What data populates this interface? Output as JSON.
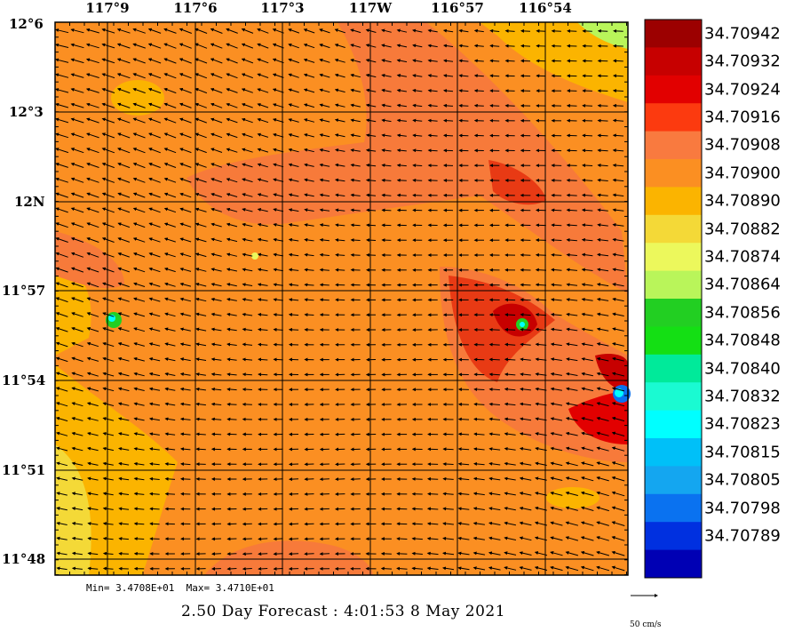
{
  "map": {
    "x_labels": [
      "117°9",
      "117°6",
      "117°3",
      "117W",
      "116°57",
      "116°54"
    ],
    "y_labels": [
      "12°6",
      "12°3",
      "12N",
      "11°57",
      "11°54",
      "11°51",
      "11°48"
    ],
    "stats": {
      "min": "Min= 3.4708E+01",
      "max": "Max= 3.4710E+01"
    },
    "forecast": "2.50 Day Forecast :  4:01:53    8 May 2021",
    "scale_label": "50 cm/s",
    "dominant_color": "#fb8f22",
    "highlight_colors": {
      "warm": "#f77a3a",
      "hot": "#e83a14",
      "cool_spot": "#2dbf4f"
    }
  },
  "colorbar": {
    "levels": [
      {
        "value": "34.70942",
        "color": "#9c0000"
      },
      {
        "value": "34.70932",
        "color": "#c70000"
      },
      {
        "value": "34.70924",
        "color": "#e20000"
      },
      {
        "value": "34.70916",
        "color": "#fc3a0f"
      },
      {
        "value": "34.70908",
        "color": "#f97a3f"
      },
      {
        "value": "34.70900",
        "color": "#fb8f22"
      },
      {
        "value": "34.70890",
        "color": "#fbb400"
      },
      {
        "value": "34.70882",
        "color": "#f4d937"
      },
      {
        "value": "34.70874",
        "color": "#ecf85c"
      },
      {
        "value": "34.70864",
        "color": "#b9f55a"
      },
      {
        "value": "34.70856",
        "color": "#22cf22"
      },
      {
        "value": "34.70848",
        "color": "#14df14"
      },
      {
        "value": "34.70840",
        "color": "#00ea9a"
      },
      {
        "value": "34.70832",
        "color": "#1afad2"
      },
      {
        "value": "34.70823",
        "color": "#00ffff"
      },
      {
        "value": "34.70815",
        "color": "#00c0f8"
      },
      {
        "value": "34.70805",
        "color": "#14a6f0"
      },
      {
        "value": "34.70798",
        "color": "#0a72f0"
      },
      {
        "value": "34.70789",
        "color": "#0030e0"
      },
      {
        "value": "",
        "color": "#0000b4"
      }
    ]
  }
}
